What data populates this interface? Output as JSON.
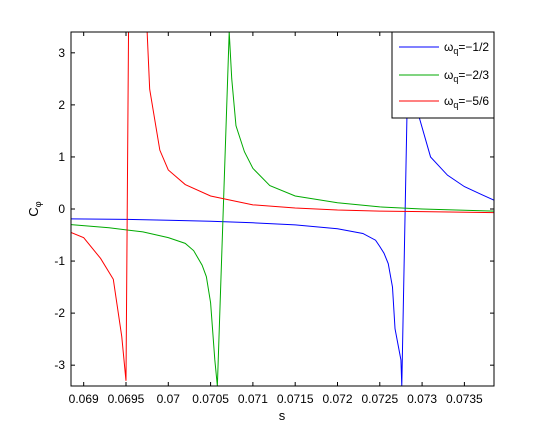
{
  "chart_data": {
    "type": "line",
    "xlabel": "s",
    "ylabel": "C",
    "ylabel_sub": "φ",
    "xlim": [
      0.06885,
      0.07385
    ],
    "ylim": [
      -3.4,
      3.4
    ],
    "xticks": [
      0.069,
      0.0695,
      0.07,
      0.0705,
      0.071,
      0.0715,
      0.072,
      0.0725,
      0.073,
      0.0735
    ],
    "xtick_labels": [
      "0.069",
      "0.0695",
      "0.07",
      "0.0705",
      "0.071",
      "0.0715",
      "0.072",
      "0.0725",
      "0.073",
      "0.0735"
    ],
    "yticks": [
      -3,
      -2,
      -1,
      0,
      1,
      2,
      3
    ],
    "ytick_labels": [
      "-3",
      "-2",
      "-1",
      "0",
      "1",
      "2",
      "3"
    ],
    "grid": false,
    "legend_position": "top-right",
    "series": [
      {
        "name": "ω_q=−1/2",
        "legend_main": "ω",
        "legend_sub": "q",
        "legend_rest": "=−1/2",
        "color": "#0000ff",
        "points": [
          [
            0.06885,
            -0.19
          ],
          [
            0.0695,
            -0.2
          ],
          [
            0.07,
            -0.215
          ],
          [
            0.0705,
            -0.235
          ],
          [
            0.071,
            -0.265
          ],
          [
            0.0715,
            -0.305
          ],
          [
            0.072,
            -0.38
          ],
          [
            0.0723,
            -0.47
          ],
          [
            0.07245,
            -0.6
          ],
          [
            0.0725,
            -0.72
          ],
          [
            0.07255,
            -0.85
          ],
          [
            0.0726,
            -1.05
          ],
          [
            0.07265,
            -1.5
          ],
          [
            0.07268,
            -2.3
          ],
          [
            0.07275,
            -2.9
          ],
          [
            0.07276,
            -3.4
          ],
          [
            0.07284,
            3.4
          ],
          [
            0.07285,
            2.8
          ],
          [
            0.07295,
            1.85
          ],
          [
            0.0731,
            1.0
          ],
          [
            0.0733,
            0.65
          ],
          [
            0.0735,
            0.43
          ],
          [
            0.0737,
            0.28
          ],
          [
            0.07385,
            0.17
          ]
        ]
      },
      {
        "name": "ω_q=−2/3",
        "legend_main": "ω",
        "legend_sub": "q",
        "legend_rest": "=−2/3",
        "color": "#00aa00",
        "points": [
          [
            0.06885,
            -0.3
          ],
          [
            0.0693,
            -0.36
          ],
          [
            0.0697,
            -0.44
          ],
          [
            0.07,
            -0.55
          ],
          [
            0.0702,
            -0.66
          ],
          [
            0.0703,
            -0.8
          ],
          [
            0.0704,
            -1.08
          ],
          [
            0.07045,
            -1.3
          ],
          [
            0.0705,
            -1.8
          ],
          [
            0.07055,
            -2.9
          ],
          [
            0.07058,
            -3.4
          ],
          [
            0.07072,
            3.4
          ],
          [
            0.07075,
            2.5
          ],
          [
            0.0708,
            1.6
          ],
          [
            0.0709,
            1.1
          ],
          [
            0.071,
            0.78
          ],
          [
            0.0712,
            0.45
          ],
          [
            0.0715,
            0.25
          ],
          [
            0.072,
            0.12
          ],
          [
            0.0725,
            0.04
          ],
          [
            0.073,
            0.0
          ],
          [
            0.07385,
            -0.04
          ]
        ]
      },
      {
        "name": "ω_q=−5/6",
        "legend_main": "ω",
        "legend_sub": "q",
        "legend_rest": "=−5/6",
        "color": "#ff0000",
        "points": [
          [
            0.06885,
            -0.45
          ],
          [
            0.069,
            -0.55
          ],
          [
            0.0691,
            -0.75
          ],
          [
            0.0692,
            -0.95
          ],
          [
            0.06935,
            -1.35
          ],
          [
            0.0694,
            -1.9
          ],
          [
            0.06945,
            -2.45
          ],
          [
            0.0695,
            -3.3
          ],
          [
            0.06953,
            3.4
          ],
          [
            0.06975,
            3.4
          ],
          [
            0.06978,
            2.3
          ],
          [
            0.0699,
            1.13
          ],
          [
            0.07,
            0.75
          ],
          [
            0.0702,
            0.47
          ],
          [
            0.0705,
            0.25
          ],
          [
            0.071,
            0.08
          ],
          [
            0.0715,
            0.02
          ],
          [
            0.072,
            -0.02
          ],
          [
            0.0725,
            -0.04
          ],
          [
            0.073,
            -0.05
          ],
          [
            0.07385,
            -0.07
          ]
        ]
      }
    ]
  }
}
